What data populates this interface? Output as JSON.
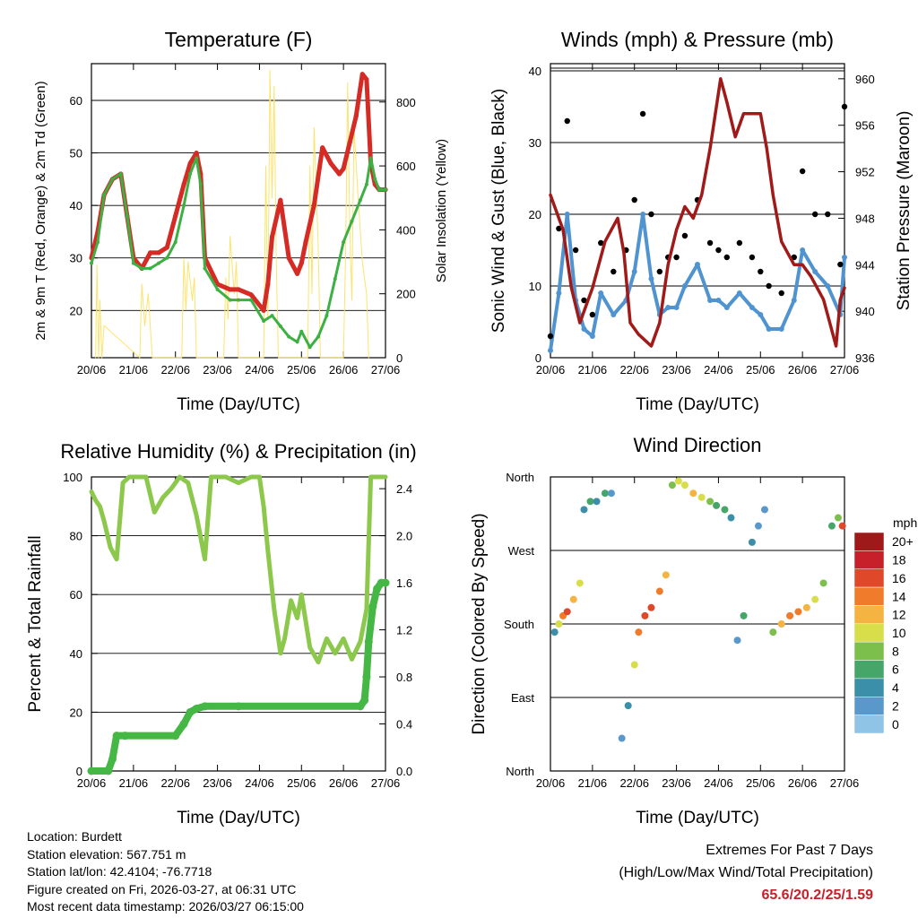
{
  "colors": {
    "red": "#d62a25",
    "orange": "#f07b2a",
    "green": "#3cb043",
    "yellow": "#fde36d",
    "maroon": "#a11a1a",
    "blue": "#4f94d0",
    "black": "#000000",
    "rh": "#8cc84b",
    "precip": "#44b744"
  },
  "chart_data": [
    {
      "id": "temperature",
      "type": "line",
      "title": "Temperature (F)",
      "xlabel": "Time (Day/UTC)",
      "ylabel": "2m & 9m T (Red, Orange) & 2m Td (Green)",
      "ylabel_right": "Solar Insolation (Yellow)",
      "x_ticks": [
        "20/06",
        "21/06",
        "22/06",
        "23/06",
        "24/06",
        "25/06",
        "26/06",
        "27/06"
      ],
      "ylim": [
        11,
        67
      ],
      "y_ticks": [
        20,
        30,
        40,
        50,
        60
      ],
      "ylim_right": [
        0,
        920
      ],
      "y_ticks_right": [
        0,
        200,
        400,
        600,
        800
      ],
      "series": [
        {
          "name": "2m T",
          "color": "red",
          "x": [
            0,
            0.15,
            0.3,
            0.5,
            0.7,
            0.85,
            1,
            1.2,
            1.4,
            1.6,
            1.8,
            2,
            2.2,
            2.35,
            2.5,
            2.6,
            2.7,
            3,
            3.3,
            3.5,
            3.8,
            4.1,
            4.2,
            4.3,
            4.5,
            4.7,
            4.9,
            5,
            5.1,
            5.3,
            5.5,
            5.7,
            5.9,
            6,
            6.15,
            6.3,
            6.45,
            6.55,
            6.65,
            6.75,
            6.85,
            7
          ],
          "values": [
            30,
            35,
            42,
            45,
            46,
            38,
            30,
            28,
            31,
            31,
            32,
            38,
            44,
            48,
            50,
            46,
            30,
            25,
            24,
            24,
            23,
            20,
            25,
            34,
            41,
            30,
            27,
            29,
            33,
            40,
            51,
            48,
            46,
            47,
            52,
            57,
            65,
            64,
            48,
            44,
            43,
            43
          ]
        },
        {
          "name": "2m Td",
          "color": "green",
          "x": [
            0,
            0.15,
            0.3,
            0.5,
            0.7,
            0.85,
            1,
            1.2,
            1.4,
            1.6,
            1.8,
            2,
            2.2,
            2.35,
            2.5,
            2.6,
            2.7,
            3,
            3.3,
            3.5,
            3.8,
            4.1,
            4.3,
            4.5,
            4.7,
            4.9,
            5,
            5.2,
            5.4,
            5.6,
            5.8,
            6,
            6.2,
            6.4,
            6.55,
            6.65,
            6.75,
            6.85,
            7
          ],
          "values": [
            29,
            33,
            42,
            45,
            46,
            38,
            29,
            28,
            28,
            29,
            30,
            33,
            40,
            46,
            49,
            44,
            28,
            24,
            22,
            22,
            22,
            18,
            19,
            17,
            15,
            14,
            16,
            13,
            15,
            19,
            26,
            33,
            37,
            41,
            44,
            49,
            45,
            43,
            43
          ]
        }
      ],
      "insolation": {
        "color": "yellow",
        "x": [
          0.1,
          0.13,
          0.17,
          0.2,
          0.25,
          0.3,
          1.15,
          1.2,
          1.27,
          1.35,
          1.45,
          2.15,
          2.2,
          2.25,
          2.3,
          2.4,
          2.45,
          2.5,
          3.15,
          3.2,
          3.25,
          3.3,
          3.4,
          3.45,
          3.5,
          4.1,
          4.15,
          4.2,
          4.25,
          4.3,
          4.35,
          4.4,
          4.45,
          5.15,
          5.2,
          5.25,
          5.3,
          5.4,
          5.45,
          6.0,
          6.05,
          6.1,
          6.15,
          6.2,
          6.25,
          6.35,
          6.45,
          6.55,
          6.6
        ],
        "values": [
          0,
          290,
          0,
          180,
          0,
          100,
          0,
          230,
          100,
          200,
          0,
          0,
          310,
          150,
          300,
          180,
          250,
          0,
          0,
          250,
          120,
          380,
          200,
          300,
          0,
          0,
          600,
          120,
          900,
          500,
          850,
          300,
          0,
          0,
          600,
          200,
          720,
          350,
          0,
          0,
          320,
          860,
          400,
          180,
          720,
          500,
          300,
          200,
          0
        ]
      }
    },
    {
      "id": "winds",
      "type": "scatter",
      "title": "Winds (mph) & Pressure (mb)",
      "xlabel": "Time (Day/UTC)",
      "ylabel": "Sonic Wind & Gust (Blue, Black)",
      "ylabel_right": "Station Pressure (Maroon)",
      "x_ticks": [
        "20/06",
        "21/06",
        "22/06",
        "23/06",
        "24/06",
        "25/06",
        "26/06",
        "27/06"
      ],
      "ylim": [
        0,
        41
      ],
      "y_ticks": [
        0,
        10,
        20,
        30,
        40
      ],
      "ylim_right": [
        936,
        961.3
      ],
      "y_ticks_right": [
        936,
        940,
        944,
        948,
        952,
        956,
        960
      ],
      "series": [
        {
          "name": "Gust",
          "color": "black",
          "x": [
            0,
            0.2,
            0.4,
            0.6,
            0.8,
            1,
            1.2,
            1.5,
            1.8,
            2,
            2.2,
            2.4,
            2.6,
            2.8,
            3,
            3.2,
            3.5,
            3.8,
            4,
            4.2,
            4.5,
            4.8,
            5,
            5.2,
            5.5,
            5.8,
            6,
            6.3,
            6.6,
            6.9,
            7
          ],
          "values": [
            3,
            18,
            33,
            15,
            8,
            6,
            16,
            12,
            15,
            22,
            34,
            20,
            12,
            14,
            14,
            17,
            22,
            16,
            15,
            14,
            16,
            14,
            12,
            10,
            9,
            14,
            26,
            20,
            20,
            13,
            35
          ]
        },
        {
          "name": "Wind",
          "color": "blue",
          "x": [
            0,
            0.2,
            0.4,
            0.6,
            0.8,
            1,
            1.2,
            1.5,
            1.8,
            2,
            2.2,
            2.4,
            2.6,
            2.8,
            3,
            3.2,
            3.5,
            3.8,
            4,
            4.2,
            4.5,
            4.8,
            5,
            5.2,
            5.5,
            5.8,
            6,
            6.3,
            6.6,
            6.9,
            7
          ],
          "values": [
            1,
            9,
            20,
            8,
            4,
            3,
            9,
            6,
            8,
            12,
            20,
            11,
            6,
            7,
            7,
            10,
            13,
            8,
            8,
            7,
            9,
            7,
            6,
            4,
            4,
            8,
            15,
            12,
            10,
            6,
            14
          ]
        }
      ],
      "pressure": {
        "name": "Station Pressure",
        "color": "maroon",
        "x": [
          0,
          0.3,
          0.5,
          0.7,
          1,
          1.3,
          1.6,
          1.75,
          1.9,
          2.1,
          2.4,
          2.6,
          2.8,
          3,
          3.2,
          3.4,
          3.6,
          3.8,
          4.05,
          4.2,
          4.4,
          4.6,
          4.8,
          5,
          5.15,
          5.3,
          5.5,
          5.8,
          6,
          6.2,
          6.5,
          6.65,
          6.8,
          6.9,
          7
        ],
        "values": [
          950,
          947,
          942,
          939,
          942,
          946,
          948,
          945,
          939,
          938,
          937,
          939,
          944,
          947,
          949,
          948,
          950,
          954,
          960,
          958,
          955,
          957,
          957,
          957,
          954,
          950,
          946,
          944,
          944,
          943,
          941,
          939,
          937,
          941,
          942
        ]
      }
    },
    {
      "id": "humidity",
      "type": "line",
      "title": "Relative Humidity (%) & Precipitation (in)",
      "xlabel": "Time (Day/UTC)",
      "ylabel": "Percent & Total Rainfall",
      "x_ticks": [
        "20/06",
        "21/06",
        "22/06",
        "23/06",
        "24/06",
        "25/06",
        "26/06",
        "27/06"
      ],
      "ylim": [
        0,
        100
      ],
      "y_ticks": [
        0,
        20,
        40,
        60,
        80,
        100
      ],
      "ylim_right": [
        0,
        2.5
      ],
      "y_ticks_right": [
        "0.0",
        "0.4",
        "0.8",
        "1.2",
        "1.6",
        "2.0",
        "2.4"
      ],
      "series": [
        {
          "name": "Relative Humidity",
          "color": "rh",
          "x": [
            0,
            0.1,
            0.2,
            0.3,
            0.45,
            0.6,
            0.75,
            0.9,
            1.1,
            1.3,
            1.5,
            1.7,
            1.9,
            2.1,
            2.3,
            2.5,
            2.7,
            2.85,
            3,
            3.2,
            3.5,
            3.8,
            4,
            4.1,
            4.2,
            4.35,
            4.5,
            4.6,
            4.75,
            4.9,
            5,
            5.2,
            5.4,
            5.6,
            5.8,
            6,
            6.2,
            6.4,
            6.55,
            6.65,
            6.75,
            6.85,
            7
          ],
          "values": [
            95,
            92,
            90,
            85,
            76,
            72,
            98,
            100,
            100,
            100,
            88,
            93,
            96,
            100,
            98,
            87,
            72,
            100,
            100,
            100,
            98,
            100,
            100,
            90,
            75,
            55,
            40,
            45,
            58,
            52,
            60,
            42,
            37,
            45,
            40,
            45,
            38,
            44,
            55,
            100,
            100,
            100,
            100
          ]
        },
        {
          "name": "Total Precipitation",
          "color": "precip",
          "x": [
            0,
            0.4,
            0.5,
            0.6,
            0.8,
            2.0,
            2.2,
            2.35,
            2.5,
            2.7,
            3.5,
            6.4,
            6.5,
            6.55,
            6.6,
            6.7,
            6.8,
            6.9,
            7
          ],
          "values": [
            0,
            0,
            0.1,
            0.3,
            0.3,
            0.3,
            0.4,
            0.5,
            0.53,
            0.55,
            0.55,
            0.55,
            0.6,
            0.8,
            1.1,
            1.4,
            1.55,
            1.6,
            1.6
          ]
        }
      ]
    },
    {
      "id": "direction",
      "type": "scatter",
      "title": "Wind Direction",
      "xlabel": "Time (Day/UTC)",
      "ylabel": "Direction (Colored By Speed)",
      "x_ticks": [
        "20/06",
        "21/06",
        "22/06",
        "23/06",
        "24/06",
        "25/06",
        "26/06",
        "27/06"
      ],
      "y_ticks": [
        "North",
        "East",
        "South",
        "West",
        "North"
      ],
      "ylim": [
        0,
        360
      ],
      "colorbar": {
        "unit": "mph",
        "labels": [
          "0",
          "2",
          "4",
          "6",
          "8",
          "10",
          "12",
          "14",
          "16",
          "18",
          "20+"
        ],
        "colors": [
          "#b8e3f7",
          "#8fc4e6",
          "#5a98cc",
          "#3c8fa8",
          "#46a66a",
          "#7cbf4c",
          "#d8de4a",
          "#f5b342",
          "#f07b2a",
          "#e0482a",
          "#c8202a",
          "#9e1a1a"
        ]
      },
      "series": [
        {
          "name": "Direction",
          "x": [
            0.1,
            0.2,
            0.3,
            0.4,
            0.55,
            0.7,
            0.8,
            0.95,
            1.1,
            1.3,
            1.45,
            1.7,
            1.85,
            2,
            2.1,
            2.25,
            2.4,
            2.6,
            2.75,
            2.9,
            3.05,
            3.2,
            3.4,
            3.6,
            3.8,
            3.95,
            4.15,
            4.3,
            4.45,
            4.6,
            4.8,
            4.95,
            5.1,
            5.3,
            5.5,
            5.7,
            5.9,
            6.1,
            6.3,
            6.5,
            6.7,
            6.85,
            6.95
          ],
          "values": [
            170,
            180,
            190,
            195,
            210,
            230,
            320,
            330,
            330,
            340,
            340,
            40,
            80,
            130,
            170,
            190,
            200,
            220,
            240,
            350,
            355,
            350,
            340,
            335,
            330,
            325,
            320,
            310,
            160,
            190,
            280,
            300,
            320,
            170,
            180,
            190,
            195,
            200,
            210,
            230,
            300,
            310,
            300
          ],
          "speeds": [
            6,
            12,
            16,
            18,
            14,
            12,
            6,
            8,
            6,
            8,
            4,
            4,
            6,
            12,
            16,
            18,
            18,
            16,
            14,
            10,
            12,
            12,
            14,
            12,
            10,
            8,
            8,
            6,
            4,
            8,
            6,
            4,
            4,
            10,
            14,
            16,
            16,
            14,
            12,
            10,
            8,
            10,
            18
          ]
        }
      ]
    }
  ],
  "footer": {
    "location": "Location: Burdett",
    "elevation": "Station elevation: 567.751 m",
    "latlon": "Station lat/lon: 42.4104; -76.7718",
    "created": "Figure created on Fri, 2026-03-27, at 06:31 UTC",
    "recent": "Most recent data timestamp: 2026/03/27 06:15:00",
    "extremes_title": "Extremes For Past 7 Days",
    "extremes_subtitle": "(High/Low/Max Wind/Total Precipitation)",
    "extremes_values": "65.6/20.2/25/1.59"
  }
}
